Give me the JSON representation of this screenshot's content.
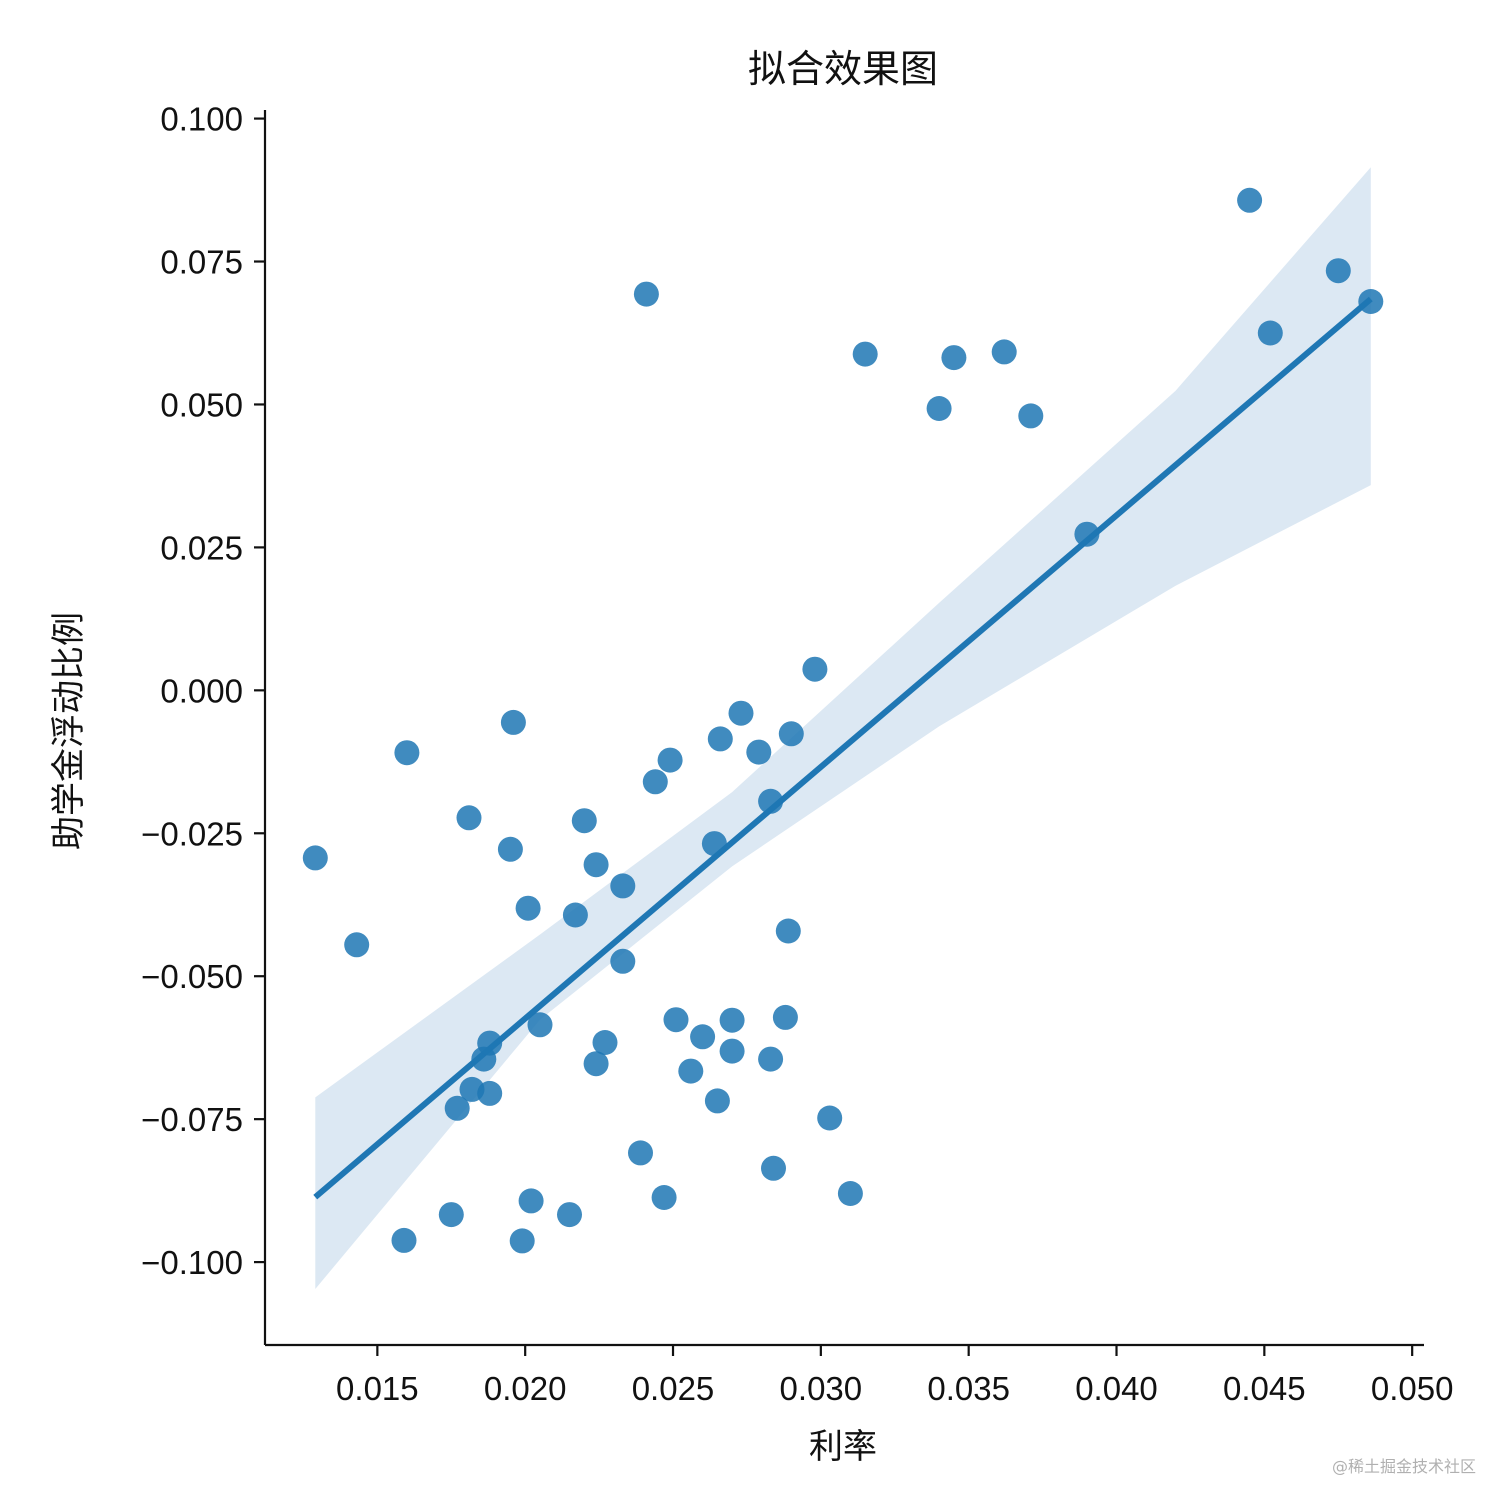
{
  "chart_data": {
    "type": "scatter",
    "title": "拟合效果图",
    "xlabel": "利率",
    "ylabel": "助学金浮动比例",
    "xlim": [
      0.0112,
      0.0504
    ],
    "ylim": [
      -0.1145,
      0.1015
    ],
    "xticks": [
      {
        "value": 0.015,
        "label": "0.015"
      },
      {
        "value": 0.02,
        "label": "0.020"
      },
      {
        "value": 0.025,
        "label": "0.025"
      },
      {
        "value": 0.03,
        "label": "0.030"
      },
      {
        "value": 0.035,
        "label": "0.035"
      },
      {
        "value": 0.04,
        "label": "0.040"
      },
      {
        "value": 0.045,
        "label": "0.045"
      },
      {
        "value": 0.05,
        "label": "0.050"
      }
    ],
    "yticks": [
      {
        "value": 0.1,
        "label": "0.100"
      },
      {
        "value": 0.075,
        "label": "0.075"
      },
      {
        "value": 0.05,
        "label": "0.050"
      },
      {
        "value": 0.025,
        "label": "0.025"
      },
      {
        "value": 0.0,
        "label": "0.000"
      },
      {
        "value": -0.025,
        "label": "−0.025"
      },
      {
        "value": -0.05,
        "label": "−0.050"
      },
      {
        "value": -0.075,
        "label": "−0.075"
      },
      {
        "value": -0.1,
        "label": "−0.100"
      }
    ],
    "points": [
      [
        0.0129,
        -0.0293
      ],
      [
        0.0143,
        -0.0445
      ],
      [
        0.0159,
        -0.0962
      ],
      [
        0.016,
        -0.0109
      ],
      [
        0.0175,
        -0.0917
      ],
      [
        0.0177,
        -0.0731
      ],
      [
        0.0181,
        -0.0223
      ],
      [
        0.0182,
        -0.0698
      ],
      [
        0.0186,
        -0.0645
      ],
      [
        0.0188,
        -0.0617
      ],
      [
        0.0188,
        -0.0705
      ],
      [
        0.0195,
        -0.0278
      ],
      [
        0.0196,
        -0.0056
      ],
      [
        0.0199,
        -0.0963
      ],
      [
        0.0201,
        -0.0381
      ],
      [
        0.0202,
        -0.0893
      ],
      [
        0.0205,
        -0.0585
      ],
      [
        0.0215,
        -0.0917
      ],
      [
        0.0217,
        -0.0393
      ],
      [
        0.022,
        -0.0228
      ],
      [
        0.0224,
        -0.0305
      ],
      [
        0.0224,
        -0.0653
      ],
      [
        0.0227,
        -0.0616
      ],
      [
        0.0233,
        -0.0342
      ],
      [
        0.0233,
        -0.0474
      ],
      [
        0.0239,
        -0.0809
      ],
      [
        0.0241,
        0.0693
      ],
      [
        0.0244,
        -0.016
      ],
      [
        0.0247,
        -0.0887
      ],
      [
        0.0249,
        -0.0122
      ],
      [
        0.0251,
        -0.0576
      ],
      [
        0.0256,
        -0.0666
      ],
      [
        0.026,
        -0.0606
      ],
      [
        0.0264,
        -0.0268
      ],
      [
        0.0265,
        -0.0718
      ],
      [
        0.0266,
        -0.0085
      ],
      [
        0.027,
        -0.0577
      ],
      [
        0.027,
        -0.0631
      ],
      [
        0.0273,
        -0.004
      ],
      [
        0.0279,
        -0.0108
      ],
      [
        0.0283,
        -0.0645
      ],
      [
        0.0283,
        -0.0194
      ],
      [
        0.0284,
        -0.0836
      ],
      [
        0.0288,
        -0.0572
      ],
      [
        0.0289,
        -0.0421
      ],
      [
        0.029,
        -0.0076
      ],
      [
        0.0298,
        0.0037
      ],
      [
        0.0303,
        -0.0748
      ],
      [
        0.031,
        -0.088
      ],
      [
        0.0315,
        0.0588
      ],
      [
        0.034,
        0.0493
      ],
      [
        0.0345,
        0.0582
      ],
      [
        0.0362,
        0.0592
      ],
      [
        0.0371,
        0.048
      ],
      [
        0.039,
        0.0273
      ],
      [
        0.0445,
        0.0857
      ],
      [
        0.0452,
        0.0625
      ],
      [
        0.0475,
        0.0734
      ],
      [
        0.0486,
        0.068
      ]
    ],
    "regression": {
      "x_range": [
        0.0129,
        0.0486
      ],
      "slope": 4.4,
      "intercept": -0.1454,
      "ci_upper": [
        [
          0.0129,
          -0.0712
        ],
        [
          0.0205,
          -0.0427
        ],
        [
          0.027,
          -0.0178
        ],
        [
          0.034,
          0.0153
        ],
        [
          0.042,
          0.0524
        ],
        [
          0.0486,
          0.0915
        ]
      ],
      "ci_lower": [
        [
          0.0129,
          -0.1047
        ],
        [
          0.0205,
          -0.0576
        ],
        [
          0.027,
          -0.0308
        ],
        [
          0.034,
          -0.0063
        ],
        [
          0.042,
          0.0183
        ],
        [
          0.0486,
          0.0359
        ]
      ]
    },
    "grid": false,
    "colors": {
      "point": "#1f77b4",
      "line": "#1f77b4",
      "band": "#dce8f3"
    }
  },
  "watermark": "@稀土掘金技术社区"
}
